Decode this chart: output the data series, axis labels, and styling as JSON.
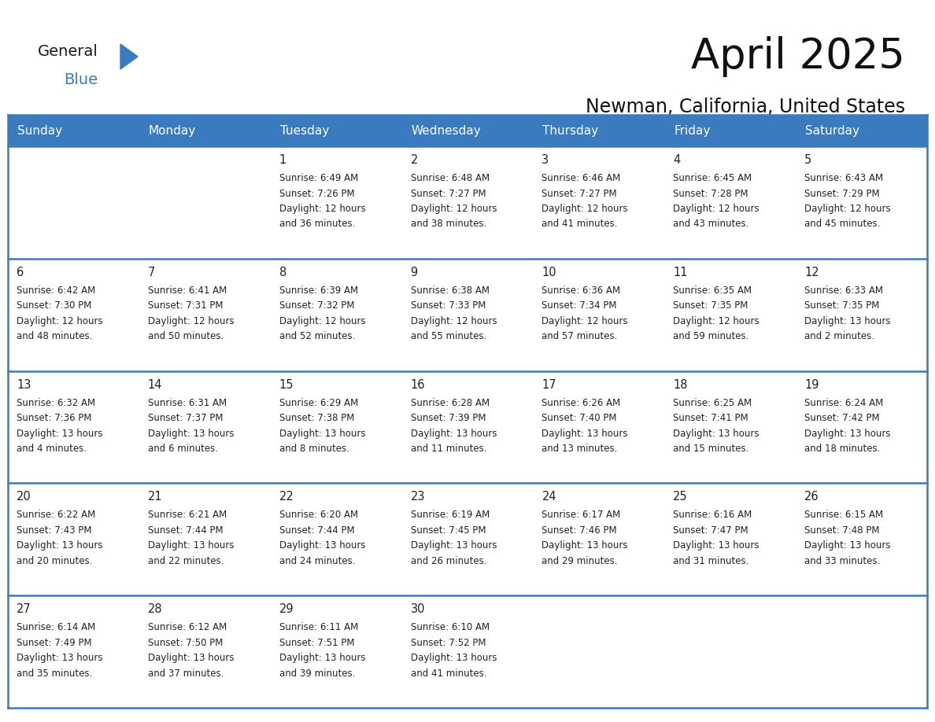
{
  "title": "April 2025",
  "subtitle": "Newman, California, United States",
  "header_bg_color": "#3a7bbf",
  "header_text_color": "#ffffff",
  "cell_bg_color": "#ffffff",
  "row_separator_color": "#3a7bbf",
  "text_color": "#222222",
  "days_of_week": [
    "Sunday",
    "Monday",
    "Tuesday",
    "Wednesday",
    "Thursday",
    "Friday",
    "Saturday"
  ],
  "weeks": [
    [
      {
        "day": null,
        "info": null
      },
      {
        "day": null,
        "info": null
      },
      {
        "day": 1,
        "info": "Sunrise: 6:49 AM\nSunset: 7:26 PM\nDaylight: 12 hours\nand 36 minutes."
      },
      {
        "day": 2,
        "info": "Sunrise: 6:48 AM\nSunset: 7:27 PM\nDaylight: 12 hours\nand 38 minutes."
      },
      {
        "day": 3,
        "info": "Sunrise: 6:46 AM\nSunset: 7:27 PM\nDaylight: 12 hours\nand 41 minutes."
      },
      {
        "day": 4,
        "info": "Sunrise: 6:45 AM\nSunset: 7:28 PM\nDaylight: 12 hours\nand 43 minutes."
      },
      {
        "day": 5,
        "info": "Sunrise: 6:43 AM\nSunset: 7:29 PM\nDaylight: 12 hours\nand 45 minutes."
      }
    ],
    [
      {
        "day": 6,
        "info": "Sunrise: 6:42 AM\nSunset: 7:30 PM\nDaylight: 12 hours\nand 48 minutes."
      },
      {
        "day": 7,
        "info": "Sunrise: 6:41 AM\nSunset: 7:31 PM\nDaylight: 12 hours\nand 50 minutes."
      },
      {
        "day": 8,
        "info": "Sunrise: 6:39 AM\nSunset: 7:32 PM\nDaylight: 12 hours\nand 52 minutes."
      },
      {
        "day": 9,
        "info": "Sunrise: 6:38 AM\nSunset: 7:33 PM\nDaylight: 12 hours\nand 55 minutes."
      },
      {
        "day": 10,
        "info": "Sunrise: 6:36 AM\nSunset: 7:34 PM\nDaylight: 12 hours\nand 57 minutes."
      },
      {
        "day": 11,
        "info": "Sunrise: 6:35 AM\nSunset: 7:35 PM\nDaylight: 12 hours\nand 59 minutes."
      },
      {
        "day": 12,
        "info": "Sunrise: 6:33 AM\nSunset: 7:35 PM\nDaylight: 13 hours\nand 2 minutes."
      }
    ],
    [
      {
        "day": 13,
        "info": "Sunrise: 6:32 AM\nSunset: 7:36 PM\nDaylight: 13 hours\nand 4 minutes."
      },
      {
        "day": 14,
        "info": "Sunrise: 6:31 AM\nSunset: 7:37 PM\nDaylight: 13 hours\nand 6 minutes."
      },
      {
        "day": 15,
        "info": "Sunrise: 6:29 AM\nSunset: 7:38 PM\nDaylight: 13 hours\nand 8 minutes."
      },
      {
        "day": 16,
        "info": "Sunrise: 6:28 AM\nSunset: 7:39 PM\nDaylight: 13 hours\nand 11 minutes."
      },
      {
        "day": 17,
        "info": "Sunrise: 6:26 AM\nSunset: 7:40 PM\nDaylight: 13 hours\nand 13 minutes."
      },
      {
        "day": 18,
        "info": "Sunrise: 6:25 AM\nSunset: 7:41 PM\nDaylight: 13 hours\nand 15 minutes."
      },
      {
        "day": 19,
        "info": "Sunrise: 6:24 AM\nSunset: 7:42 PM\nDaylight: 13 hours\nand 18 minutes."
      }
    ],
    [
      {
        "day": 20,
        "info": "Sunrise: 6:22 AM\nSunset: 7:43 PM\nDaylight: 13 hours\nand 20 minutes."
      },
      {
        "day": 21,
        "info": "Sunrise: 6:21 AM\nSunset: 7:44 PM\nDaylight: 13 hours\nand 22 minutes."
      },
      {
        "day": 22,
        "info": "Sunrise: 6:20 AM\nSunset: 7:44 PM\nDaylight: 13 hours\nand 24 minutes."
      },
      {
        "day": 23,
        "info": "Sunrise: 6:19 AM\nSunset: 7:45 PM\nDaylight: 13 hours\nand 26 minutes."
      },
      {
        "day": 24,
        "info": "Sunrise: 6:17 AM\nSunset: 7:46 PM\nDaylight: 13 hours\nand 29 minutes."
      },
      {
        "day": 25,
        "info": "Sunrise: 6:16 AM\nSunset: 7:47 PM\nDaylight: 13 hours\nand 31 minutes."
      },
      {
        "day": 26,
        "info": "Sunrise: 6:15 AM\nSunset: 7:48 PM\nDaylight: 13 hours\nand 33 minutes."
      }
    ],
    [
      {
        "day": 27,
        "info": "Sunrise: 6:14 AM\nSunset: 7:49 PM\nDaylight: 13 hours\nand 35 minutes."
      },
      {
        "day": 28,
        "info": "Sunrise: 6:12 AM\nSunset: 7:50 PM\nDaylight: 13 hours\nand 37 minutes."
      },
      {
        "day": 29,
        "info": "Sunrise: 6:11 AM\nSunset: 7:51 PM\nDaylight: 13 hours\nand 39 minutes."
      },
      {
        "day": 30,
        "info": "Sunrise: 6:10 AM\nSunset: 7:52 PM\nDaylight: 13 hours\nand 41 minutes."
      },
      {
        "day": null,
        "info": null
      },
      {
        "day": null,
        "info": null
      },
      {
        "day": null,
        "info": null
      }
    ]
  ]
}
